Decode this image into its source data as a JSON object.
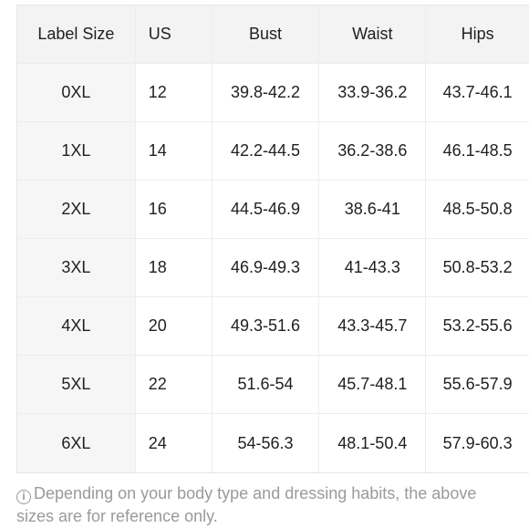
{
  "table": {
    "headers": [
      "Label Size",
      "US",
      "Bust",
      "Waist",
      "Hips"
    ],
    "rows": [
      [
        "0XL",
        "12",
        "39.8-42.2",
        "33.9-36.2",
        "43.7-46.1"
      ],
      [
        "1XL",
        "14",
        "42.2-44.5",
        "36.2-38.6",
        "46.1-48.5"
      ],
      [
        "2XL",
        "16",
        "44.5-46.9",
        "38.6-41",
        "48.5-50.8"
      ],
      [
        "3XL",
        "18",
        "46.9-49.3",
        "41-43.3",
        "50.8-53.2"
      ],
      [
        "4XL",
        "20",
        "49.3-51.6",
        "43.3-45.7",
        "53.2-55.6"
      ],
      [
        "5XL",
        "22",
        "51.6-54",
        "45.7-48.1",
        "55.6-57.9"
      ],
      [
        "6XL",
        "24",
        "54-56.3",
        "48.1-50.4",
        "57.9-60.3"
      ]
    ]
  },
  "note": {
    "icon": "info-icon",
    "text": "Depending on your body type and dressing habits, the above sizes are for reference only."
  }
}
